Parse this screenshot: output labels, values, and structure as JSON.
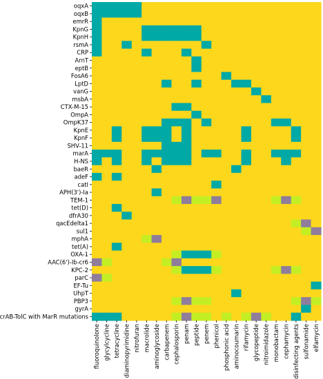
{
  "chart_data": {
    "type": "heatmap",
    "title": "",
    "xlabel": "",
    "ylabel": "",
    "grid": false,
    "legend": "none",
    "colors": {
      "0": "#fdd71c",
      "1": "#00a9a6",
      "2": "#c3ee24",
      "3": "#8f7d9b"
    },
    "x_categories": [
      "fluoroquinolone",
      "glycylcycline",
      "tetracycline",
      "diaminopyrimidine",
      "nitrofuran",
      "macrolide",
      "aminoglycoside",
      "carbapenem",
      "cephalosporin",
      "penam",
      "peptide",
      "penem",
      "phenicol",
      "phosphonic acid",
      "aminocoumarin",
      "rifamycin",
      "glycopeptide",
      "nitroimidazole",
      "monobactam",
      "cephamycin",
      "disinfecting agents",
      "sulfonamide",
      "elfamycin"
    ],
    "y_categories": [
      "oqxA",
      "oqxB",
      "emrR",
      "KpnG",
      "KpnH",
      "rsmA",
      "CRP",
      "ArnT",
      "eptB",
      "FosA6",
      "LptD",
      "vanG",
      "msbA",
      "CTX-M-15",
      "OmpA",
      "OmpK37",
      "KpnE",
      "KpnF",
      "SHV-11",
      "marA",
      "H-NS",
      "baeR",
      "adeF",
      "catI",
      "APH(3')-Ia",
      "TEM-1",
      "tet(D)",
      "dfrA30",
      "qacEdelta1",
      "sul1",
      "mphA",
      "tet(A)",
      "OXA-1",
      "AAC(6')-Ib-cr6",
      "KPC-2",
      "parC",
      "EF-Tu",
      "UhpT",
      "PBP3",
      "gyrA",
      "AcrAB-TolC with MarR mutations"
    ],
    "z": [
      [
        1,
        1,
        1,
        1,
        1,
        0,
        0,
        0,
        0,
        0,
        0,
        0,
        0,
        0,
        0,
        0,
        0,
        0,
        0,
        0,
        0,
        0,
        0
      ],
      [
        1,
        1,
        1,
        1,
        1,
        0,
        0,
        0,
        0,
        0,
        0,
        0,
        0,
        0,
        0,
        0,
        0,
        0,
        0,
        0,
        0,
        0,
        0
      ],
      [
        1,
        0,
        0,
        0,
        0,
        0,
        0,
        0,
        0,
        0,
        0,
        0,
        0,
        0,
        0,
        0,
        0,
        0,
        0,
        0,
        0,
        0,
        0
      ],
      [
        1,
        0,
        0,
        0,
        0,
        1,
        1,
        1,
        1,
        1,
        1,
        0,
        0,
        0,
        0,
        0,
        0,
        0,
        0,
        0,
        0,
        0,
        0
      ],
      [
        1,
        0,
        0,
        0,
        0,
        1,
        1,
        1,
        1,
        1,
        1,
        0,
        0,
        0,
        0,
        0,
        0,
        0,
        0,
        0,
        0,
        0,
        0
      ],
      [
        1,
        0,
        0,
        1,
        0,
        0,
        0,
        0,
        0,
        0,
        0,
        1,
        0,
        0,
        0,
        0,
        0,
        0,
        0,
        0,
        0,
        0,
        0
      ],
      [
        1,
        0,
        0,
        0,
        0,
        1,
        0,
        0,
        0,
        1,
        0,
        0,
        0,
        0,
        0,
        0,
        0,
        0,
        0,
        0,
        0,
        0,
        0
      ],
      [
        0,
        0,
        0,
        0,
        0,
        0,
        0,
        0,
        0,
        0,
        1,
        0,
        0,
        0,
        0,
        0,
        0,
        0,
        0,
        0,
        0,
        0,
        0
      ],
      [
        0,
        0,
        0,
        0,
        0,
        0,
        0,
        0,
        0,
        0,
        1,
        0,
        0,
        0,
        0,
        0,
        0,
        0,
        0,
        0,
        0,
        0,
        0
      ],
      [
        0,
        0,
        0,
        0,
        0,
        0,
        0,
        0,
        0,
        0,
        0,
        0,
        0,
        1,
        0,
        0,
        0,
        0,
        0,
        0,
        0,
        0,
        0
      ],
      [
        0,
        0,
        0,
        0,
        0,
        0,
        0,
        1,
        0,
        0,
        1,
        0,
        0,
        0,
        1,
        1,
        0,
        0,
        0,
        0,
        0,
        0,
        0
      ],
      [
        0,
        0,
        0,
        0,
        0,
        0,
        0,
        0,
        0,
        0,
        0,
        0,
        0,
        0,
        0,
        0,
        1,
        0,
        0,
        0,
        0,
        0,
        0
      ],
      [
        0,
        0,
        0,
        0,
        0,
        0,
        0,
        0,
        0,
        0,
        0,
        0,
        0,
        0,
        0,
        0,
        0,
        1,
        0,
        0,
        0,
        0,
        0
      ],
      [
        0,
        0,
        0,
        0,
        0,
        0,
        0,
        0,
        1,
        1,
        0,
        0,
        0,
        0,
        0,
        0,
        0,
        0,
        0,
        0,
        0,
        0,
        0
      ],
      [
        0,
        0,
        0,
        0,
        0,
        0,
        0,
        0,
        0,
        0,
        1,
        0,
        0,
        0,
        0,
        0,
        0,
        0,
        0,
        0,
        0,
        0,
        0
      ],
      [
        0,
        0,
        0,
        0,
        0,
        0,
        0,
        1,
        1,
        1,
        0,
        1,
        0,
        0,
        0,
        0,
        0,
        0,
        1,
        1,
        0,
        0,
        0
      ],
      [
        0,
        0,
        1,
        0,
        0,
        1,
        1,
        1,
        0,
        1,
        0,
        0,
        0,
        0,
        0,
        1,
        0,
        0,
        0,
        0,
        1,
        0,
        0
      ],
      [
        0,
        0,
        1,
        0,
        0,
        1,
        1,
        1,
        0,
        1,
        0,
        0,
        0,
        0,
        0,
        1,
        0,
        0,
        0,
        0,
        1,
        0,
        0
      ],
      [
        0,
        0,
        0,
        0,
        0,
        0,
        0,
        1,
        1,
        1,
        0,
        0,
        0,
        0,
        0,
        0,
        0,
        0,
        0,
        0,
        0,
        0,
        0
      ],
      [
        1,
        1,
        1,
        0,
        0,
        1,
        1,
        1,
        1,
        1,
        0,
        1,
        1,
        0,
        0,
        1,
        0,
        0,
        1,
        1,
        1,
        0,
        0
      ],
      [
        1,
        0,
        1,
        0,
        0,
        1,
        0,
        1,
        1,
        1,
        0,
        0,
        0,
        0,
        0,
        1,
        0,
        0,
        0,
        1,
        0,
        0,
        0
      ],
      [
        0,
        0,
        0,
        0,
        0,
        0,
        1,
        0,
        0,
        0,
        0,
        0,
        0,
        0,
        1,
        0,
        0,
        0,
        0,
        0,
        0,
        0,
        0
      ],
      [
        1,
        0,
        1,
        0,
        0,
        0,
        0,
        0,
        0,
        0,
        0,
        0,
        0,
        0,
        0,
        0,
        0,
        0,
        0,
        0,
        0,
        0,
        0
      ],
      [
        0,
        0,
        0,
        0,
        0,
        0,
        0,
        0,
        0,
        0,
        0,
        0,
        1,
        0,
        0,
        0,
        0,
        0,
        0,
        0,
        0,
        0,
        0
      ],
      [
        0,
        0,
        0,
        0,
        0,
        0,
        1,
        0,
        0,
        0,
        0,
        0,
        0,
        0,
        0,
        0,
        0,
        0,
        0,
        0,
        0,
        0,
        0
      ],
      [
        0,
        0,
        0,
        0,
        0,
        0,
        0,
        0,
        2,
        3,
        2,
        2,
        3,
        0,
        0,
        0,
        0,
        0,
        2,
        3,
        2,
        0,
        0
      ],
      [
        0,
        0,
        1,
        0,
        0,
        0,
        0,
        0,
        0,
        0,
        0,
        0,
        0,
        0,
        0,
        0,
        0,
        0,
        0,
        0,
        0,
        0,
        0
      ],
      [
        0,
        0,
        0,
        1,
        0,
        0,
        0,
        0,
        0,
        0,
        0,
        0,
        0,
        0,
        0,
        0,
        0,
        0,
        0,
        0,
        0,
        0,
        0
      ],
      [
        0,
        0,
        0,
        0,
        0,
        0,
        0,
        0,
        0,
        0,
        0,
        0,
        0,
        0,
        0,
        0,
        0,
        0,
        0,
        0,
        2,
        3,
        0
      ],
      [
        0,
        0,
        0,
        0,
        0,
        0,
        0,
        0,
        0,
        0,
        0,
        0,
        0,
        0,
        0,
        0,
        0,
        0,
        0,
        0,
        0,
        2,
        3
      ],
      [
        0,
        0,
        0,
        0,
        0,
        2,
        3,
        0,
        0,
        0,
        0,
        0,
        0,
        0,
        0,
        0,
        0,
        0,
        0,
        0,
        0,
        0,
        0
      ],
      [
        0,
        0,
        1,
        0,
        0,
        0,
        0,
        0,
        0,
        0,
        0,
        0,
        0,
        0,
        0,
        0,
        0,
        0,
        0,
        0,
        0,
        0,
        0
      ],
      [
        0,
        0,
        0,
        0,
        0,
        0,
        0,
        0,
        2,
        1,
        1,
        1,
        2,
        0,
        0,
        0,
        0,
        0,
        0,
        0,
        0,
        0,
        0
      ],
      [
        3,
        2,
        0,
        0,
        0,
        0,
        0,
        2,
        3,
        0,
        0,
        0,
        0,
        0,
        0,
        0,
        0,
        0,
        0,
        0,
        0,
        0,
        0
      ],
      [
        0,
        0,
        0,
        0,
        0,
        0,
        0,
        0,
        2,
        1,
        1,
        1,
        2,
        0,
        0,
        0,
        0,
        0,
        2,
        3,
        2,
        0,
        0
      ],
      [
        3,
        2,
        0,
        0,
        0,
        0,
        0,
        0,
        0,
        0,
        0,
        0,
        0,
        0,
        0,
        0,
        0,
        0,
        0,
        0,
        0,
        0,
        0
      ],
      [
        0,
        0,
        0,
        0,
        0,
        0,
        0,
        0,
        0,
        0,
        0,
        0,
        0,
        0,
        0,
        0,
        0,
        0,
        0,
        0,
        0,
        0,
        1
      ],
      [
        0,
        0,
        0,
        0,
        0,
        0,
        0,
        0,
        0,
        0,
        0,
        0,
        0,
        0,
        1,
        0,
        0,
        0,
        0,
        0,
        0,
        0,
        0
      ],
      [
        0,
        0,
        0,
        0,
        0,
        0,
        0,
        0,
        2,
        3,
        2,
        2,
        0,
        0,
        0,
        0,
        0,
        0,
        0,
        0,
        2,
        3,
        2
      ],
      [
        0,
        0,
        0,
        0,
        0,
        0,
        0,
        0,
        0,
        0,
        0,
        0,
        0,
        0,
        0,
        0,
        0,
        0,
        0,
        0,
        0,
        1,
        0
      ],
      [
        1,
        1,
        1,
        0,
        0,
        0,
        0,
        0,
        2,
        3,
        2,
        2,
        0,
        2,
        0,
        2,
        3,
        2,
        0,
        0,
        1,
        0,
        0
      ]
    ]
  }
}
